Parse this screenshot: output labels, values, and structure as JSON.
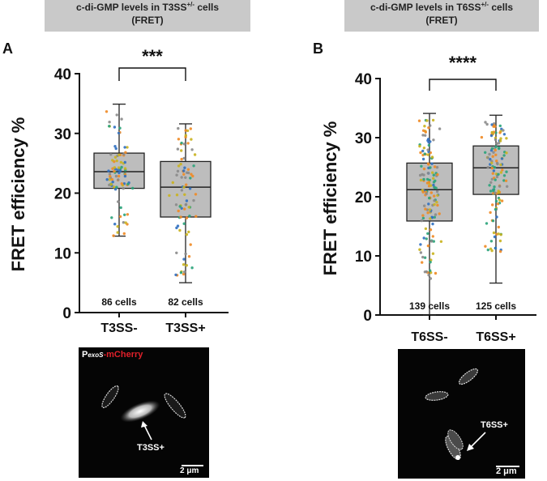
{
  "panels": [
    {
      "letter": "A",
      "header_line1": "c-di-GMP levels in T3SS",
      "header_sup": "+/-",
      "header_suffix": " cells",
      "header_line2": "(FRET)",
      "micro_label_prefix": "P",
      "micro_label_sub": "exoS",
      "micro_label_suffix": "-mCherry",
      "arrow_label": "T3SS+",
      "scale_bar": "2 μm"
    },
    {
      "letter": "B",
      "header_line1": "c-di-GMP levels in T6SS",
      "header_sup": "+/-",
      "header_suffix": " cells",
      "header_line2": "(FRET)",
      "arrow_label": "T6SS+",
      "scale_bar": "2 μm"
    }
  ],
  "chart_data": [
    {
      "type": "box",
      "panel": "A",
      "ylabel": "FRET efficiency %",
      "ylim": [
        0,
        40
      ],
      "yticks": [
        0,
        10,
        20,
        30,
        40
      ],
      "categories": [
        "T3SS-",
        "T3SS+"
      ],
      "cell_counts": [
        "86 cells",
        "82 cells"
      ],
      "significance": "***",
      "boxes": [
        {
          "min": 12.8,
          "q1": 20.8,
          "median": 23.6,
          "q3": 26.7,
          "max": 34.9
        },
        {
          "min": 5.0,
          "q1": 16.0,
          "median": 21.0,
          "q3": 25.3,
          "max": 31.6
        }
      ],
      "point_colors": [
        "#f08a24",
        "#2f6fc0",
        "#2aa37a",
        "#8a8a8a",
        "#c9b21e"
      ]
    },
    {
      "type": "box",
      "panel": "B",
      "ylabel": "FRET efficiency %",
      "ylim": [
        0,
        40
      ],
      "yticks": [
        0,
        10,
        20,
        30,
        40
      ],
      "categories": [
        "T6SS-",
        "T6SS+"
      ],
      "cell_counts": [
        "139 cells",
        "125 cells"
      ],
      "significance": "****",
      "boxes": [
        {
          "min": 0,
          "q1": 15.9,
          "median": 21.2,
          "q3": 25.7,
          "max": 34.1
        },
        {
          "min": 5.4,
          "q1": 20.4,
          "median": 24.9,
          "q3": 28.6,
          "max": 33.8
        }
      ],
      "point_colors": [
        "#f08a24",
        "#2f6fc0",
        "#2aa37a",
        "#8a8a8a",
        "#c9b21e"
      ]
    }
  ]
}
